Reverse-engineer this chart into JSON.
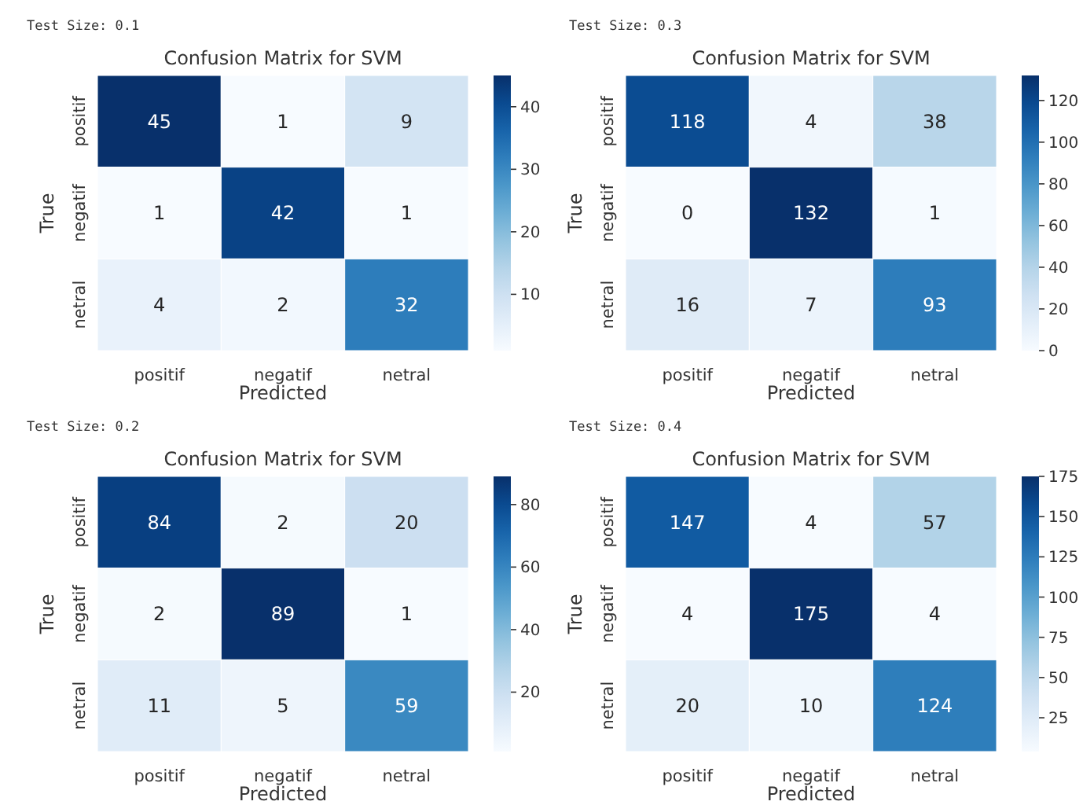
{
  "chart_data": [
    {
      "type": "heatmap",
      "title": "Confusion Matrix for SVM",
      "annotations": [
        "Test Size: 0.1"
      ],
      "xlabel": "Predicted",
      "ylabel": "True",
      "categories": [
        "positif",
        "negatif",
        "netral"
      ],
      "y_categories": [
        "positif",
        "negatif",
        "netral"
      ],
      "cells": [
        [
          45,
          1,
          9
        ],
        [
          1,
          42,
          1
        ],
        [
          4,
          2,
          32
        ]
      ],
      "data_labels": true,
      "clim": [
        1,
        45
      ],
      "cticks": [
        10,
        20,
        30,
        40
      ]
    },
    {
      "type": "heatmap",
      "title": "Confusion Matrix for SVM",
      "annotations": [
        "Test Size: 0.3"
      ],
      "xlabel": "Predicted",
      "ylabel": "True",
      "categories": [
        "positif",
        "negatif",
        "netral"
      ],
      "y_categories": [
        "positif",
        "negatif",
        "netral"
      ],
      "cells": [
        [
          118,
          4,
          38
        ],
        [
          0,
          132,
          1
        ],
        [
          16,
          7,
          93
        ]
      ],
      "data_labels": true,
      "clim": [
        0,
        132
      ],
      "cticks": [
        0,
        20,
        40,
        60,
        80,
        100,
        120
      ]
    },
    {
      "type": "heatmap",
      "title": "Confusion Matrix for SVM",
      "annotations": [
        "Test Size: 0.2"
      ],
      "xlabel": "Predicted",
      "ylabel": "True",
      "categories": [
        "positif",
        "negatif",
        "netral"
      ],
      "y_categories": [
        "positif",
        "negatif",
        "netral"
      ],
      "cells": [
        [
          84,
          2,
          20
        ],
        [
          2,
          89,
          1
        ],
        [
          11,
          5,
          59
        ]
      ],
      "data_labels": true,
      "clim": [
        1,
        89
      ],
      "cticks": [
        20,
        40,
        60,
        80
      ]
    },
    {
      "type": "heatmap",
      "title": "Confusion Matrix for SVM",
      "annotations": [
        "Test Size: 0.4"
      ],
      "xlabel": "Predicted",
      "ylabel": "True",
      "categories": [
        "positif",
        "negatif",
        "netral"
      ],
      "y_categories": [
        "positif",
        "negatif",
        "netral"
      ],
      "cells": [
        [
          147,
          4,
          57
        ],
        [
          4,
          175,
          4
        ],
        [
          20,
          10,
          124
        ]
      ],
      "data_labels": true,
      "clim": [
        4,
        175
      ],
      "cticks": [
        25,
        50,
        75,
        100,
        125,
        150,
        175
      ]
    }
  ]
}
